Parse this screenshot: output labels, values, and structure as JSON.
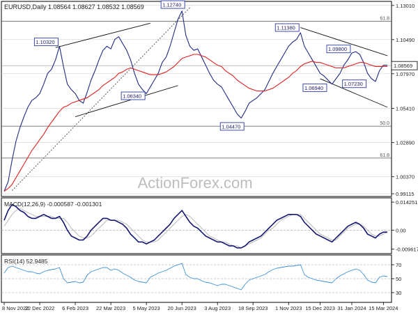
{
  "chart_data": {
    "type": "line",
    "symbol_line": "EURUSD,Daily  1.08564 1.08627 1.08532 1.08569",
    "watermark": "ActionForex.com",
    "price_panel": {
      "ylim": [
        0.9912,
        1.13
      ],
      "y_ticks": [
        "1.13010",
        "1.10490",
        "1.07970",
        "1.05410",
        "1.02890",
        "1.00370",
        "0.99115"
      ],
      "current_price": "1.08569",
      "fib_levels": [
        {
          "label": "61.8",
          "value": 1.1185
        },
        {
          "label": "50.0",
          "value": 1.041
        },
        {
          "label": "61.8",
          "value": 1.0175
        }
      ],
      "price_labels": [
        {
          "text": "1.10320",
          "date_index": 14,
          "value": 1.1032
        },
        {
          "text": "1.12740",
          "date_index": 45,
          "value": 1.1274
        },
        {
          "text": "1.06340",
          "date_index": 36,
          "value": 1.0634
        },
        {
          "text": "1.04470",
          "date_index": 60,
          "value": 1.0447
        },
        {
          "text": "1.11380",
          "date_index": 75,
          "value": 1.1138
        },
        {
          "text": "1.09800",
          "date_index": 88,
          "value": 1.098
        },
        {
          "text": "1.06940",
          "date_index": 82,
          "value": 1.0694
        },
        {
          "text": "1.07230",
          "date_index": 92,
          "value": 1.0723
        }
      ],
      "series": [
        {
          "name": "Price",
          "values": [
            0.993,
            1.0,
            1.016,
            1.03,
            1.04,
            1.048,
            1.055,
            1.06,
            1.062,
            1.065,
            1.072,
            1.08,
            1.083,
            1.09,
            1.1,
            1.085,
            1.072,
            1.068,
            1.065,
            1.06,
            1.058,
            1.066,
            1.075,
            1.082,
            1.09,
            1.097,
            1.1,
            1.098,
            1.105,
            1.107,
            1.102,
            1.097,
            1.09,
            1.08,
            1.072,
            1.068,
            1.065,
            1.07,
            1.075,
            1.08,
            1.088,
            1.092,
            1.1,
            1.11,
            1.12,
            1.126,
            1.108,
            1.1,
            1.097,
            1.098,
            1.092,
            1.086,
            1.08,
            1.075,
            1.072,
            1.07,
            1.065,
            1.06,
            1.055,
            1.05,
            1.047,
            1.052,
            1.058,
            1.06,
            1.062,
            1.065,
            1.068,
            1.074,
            1.08,
            1.085,
            1.09,
            1.095,
            1.1,
            1.103,
            1.105,
            1.11,
            1.1,
            1.095,
            1.09,
            1.085,
            1.08,
            1.078,
            1.075,
            1.072,
            1.076,
            1.08,
            1.086,
            1.09,
            1.095,
            1.096,
            1.094,
            1.088,
            1.08,
            1.076,
            1.074,
            1.082,
            1.086,
            1.086
          ]
        },
        {
          "name": "EMA",
          "values": [
            0.993,
            0.995,
            0.998,
            1.003,
            1.008,
            1.013,
            1.018,
            1.023,
            1.027,
            1.031,
            1.035,
            1.04,
            1.044,
            1.048,
            1.052,
            1.055,
            1.056,
            1.058,
            1.059,
            1.06,
            1.061,
            1.062,
            1.064,
            1.066,
            1.068,
            1.071,
            1.073,
            1.075,
            1.077,
            1.08,
            1.081,
            1.083,
            1.084,
            1.083,
            1.082,
            1.081,
            1.08,
            1.079,
            1.079,
            1.079,
            1.08,
            1.081,
            1.083,
            1.085,
            1.088,
            1.091,
            1.092,
            1.093,
            1.094,
            1.094,
            1.093,
            1.092,
            1.09,
            1.088,
            1.086,
            1.085,
            1.082,
            1.08,
            1.078,
            1.075,
            1.073,
            1.071,
            1.069,
            1.068,
            1.067,
            1.067,
            1.067,
            1.068,
            1.069,
            1.071,
            1.073,
            1.075,
            1.077,
            1.08,
            1.082,
            1.085,
            1.087,
            1.088,
            1.089,
            1.088,
            1.088,
            1.087,
            1.086,
            1.085,
            1.084,
            1.084,
            1.084,
            1.085,
            1.086,
            1.087,
            1.088,
            1.088,
            1.087,
            1.086,
            1.085,
            1.085,
            1.085,
            1.085
          ]
        }
      ]
    },
    "macd_panel": {
      "header": "MACD(12,26,9) -0.000587 -0.001301",
      "ylim": [
        -0.0105,
        0.015
      ],
      "y_ticks": [
        "0.014251",
        "0.00",
        "-0.009617"
      ],
      "series": [
        {
          "name": "MACD",
          "values": [
            0.005,
            0.01,
            0.013,
            0.012,
            0.01,
            0.009,
            0.007,
            0.006,
            0.006,
            0.007,
            0.008,
            0.007,
            0.006,
            0.006,
            0.007,
            0.004,
            0.0,
            -0.003,
            -0.004,
            -0.005,
            -0.005,
            -0.003,
            0.0,
            0.002,
            0.004,
            0.006,
            0.006,
            0.005,
            0.005,
            0.004,
            0.003,
            0.001,
            -0.002,
            -0.004,
            -0.006,
            -0.006,
            -0.007,
            -0.006,
            -0.005,
            -0.003,
            -0.001,
            0.001,
            0.003,
            0.006,
            0.008,
            0.01,
            0.007,
            0.004,
            0.002,
            0.001,
            -0.001,
            -0.003,
            -0.004,
            -0.005,
            -0.006,
            -0.006,
            -0.007,
            -0.008,
            -0.008,
            -0.009,
            -0.009,
            -0.008,
            -0.006,
            -0.005,
            -0.004,
            -0.003,
            -0.001,
            0.001,
            0.003,
            0.005,
            0.006,
            0.007,
            0.008,
            0.008,
            0.008,
            0.007,
            0.004,
            0.002,
            0.0,
            -0.002,
            -0.003,
            -0.004,
            -0.005,
            -0.006,
            -0.004,
            -0.002,
            0.0,
            0.002,
            0.003,
            0.004,
            0.003,
            0.001,
            -0.002,
            -0.003,
            -0.004,
            -0.002,
            -0.001,
            -0.001
          ]
        },
        {
          "name": "Signal",
          "values": [
            0.002,
            0.005,
            0.008,
            0.01,
            0.011,
            0.01,
            0.009,
            0.008,
            0.007,
            0.007,
            0.007,
            0.007,
            0.007,
            0.006,
            0.006,
            0.006,
            0.004,
            0.001,
            -0.001,
            -0.003,
            -0.004,
            -0.004,
            -0.003,
            -0.001,
            0.001,
            0.003,
            0.005,
            0.005,
            0.005,
            0.005,
            0.004,
            0.003,
            0.001,
            -0.001,
            -0.003,
            -0.005,
            -0.006,
            -0.006,
            -0.006,
            -0.005,
            -0.003,
            -0.001,
            0.001,
            0.003,
            0.005,
            0.007,
            0.008,
            0.007,
            0.005,
            0.003,
            0.001,
            -0.001,
            -0.003,
            -0.004,
            -0.005,
            -0.006,
            -0.006,
            -0.007,
            -0.008,
            -0.008,
            -0.009,
            -0.008,
            -0.007,
            -0.006,
            -0.005,
            -0.004,
            -0.002,
            0.0,
            0.001,
            0.003,
            0.005,
            0.006,
            0.007,
            0.008,
            0.008,
            0.008,
            0.006,
            0.004,
            0.002,
            0.0,
            -0.002,
            -0.003,
            -0.004,
            -0.005,
            -0.005,
            -0.003,
            -0.001,
            0.001,
            0.002,
            0.003,
            0.003,
            0.002,
            0.0,
            -0.002,
            -0.003,
            -0.003,
            -0.002,
            -0.001
          ]
        }
      ]
    },
    "rsi_panel": {
      "header": "RSI(14) 52.9485",
      "ylim": [
        20,
        80
      ],
      "y_ticks": [
        "70",
        "50",
        "30"
      ],
      "series": [
        {
          "name": "RSI",
          "values": [
            58,
            66,
            68,
            66,
            64,
            62,
            60,
            60,
            58,
            57,
            60,
            62,
            63,
            64,
            66,
            50,
            44,
            45,
            46,
            44,
            45,
            55,
            60,
            62,
            64,
            66,
            66,
            62,
            64,
            62,
            58,
            55,
            52,
            48,
            46,
            45,
            44,
            52,
            55,
            58,
            60,
            62,
            65,
            68,
            70,
            72,
            56,
            52,
            50,
            50,
            47,
            45,
            44,
            42,
            40,
            42,
            42,
            40,
            38,
            36,
            34,
            42,
            48,
            50,
            52,
            54,
            56,
            60,
            63,
            65,
            66,
            67,
            68,
            68,
            69,
            70,
            56,
            52,
            50,
            48,
            47,
            46,
            45,
            44,
            50,
            54,
            57,
            60,
            62,
            64,
            62,
            56,
            48,
            45,
            44,
            52,
            54,
            53
          ]
        }
      ]
    },
    "x_tick_labels": [
      {
        "label": "8 Nov 2022",
        "index": 0
      },
      {
        "label": "22 Dec 2022",
        "index": 9
      },
      {
        "label": "6 Feb 2023",
        "index": 18
      },
      {
        "label": "22 Mar 2023",
        "index": 27
      },
      {
        "label": "5 May 2023",
        "index": 36
      },
      {
        "label": "20 Jun 2023",
        "index": 45
      },
      {
        "label": "3 Aug 2023",
        "index": 54
      },
      {
        "label": "18 Sep 2023",
        "index": 63
      },
      {
        "label": "1 Nov 2023",
        "index": 72
      },
      {
        "label": "15 Dec 2023",
        "index": 80
      },
      {
        "label": "31 Jan 2024",
        "index": 88
      },
      {
        "label": "15 Mar 2024",
        "index": 96
      }
    ],
    "trendlines": [
      {
        "name": "upper-channel-2023",
        "points": [
          [
            13,
            1.099
          ],
          [
            37,
            1.117
          ]
        ]
      },
      {
        "name": "lower-channel-2023",
        "points": [
          [
            18,
            1.048
          ],
          [
            44,
            1.071
          ]
        ]
      },
      {
        "name": "rising-support-dotted",
        "points": [
          [
            2,
            0.9935
          ],
          [
            47,
            1.1285
          ]
        ]
      },
      {
        "name": "upper-channel-2024",
        "points": [
          [
            75,
            1.1138
          ],
          [
            97,
            1.093
          ]
        ]
      },
      {
        "name": "lower-channel-2024",
        "points": [
          [
            80,
            1.076
          ],
          [
            97,
            1.055
          ]
        ]
      }
    ],
    "colors": {
      "price": "#1f2a86",
      "ema": "#e02020",
      "macd": "#141873",
      "signal": "#b8b8b8",
      "rsi": "#3a8fd8",
      "grid": "#c8c8c8"
    }
  }
}
